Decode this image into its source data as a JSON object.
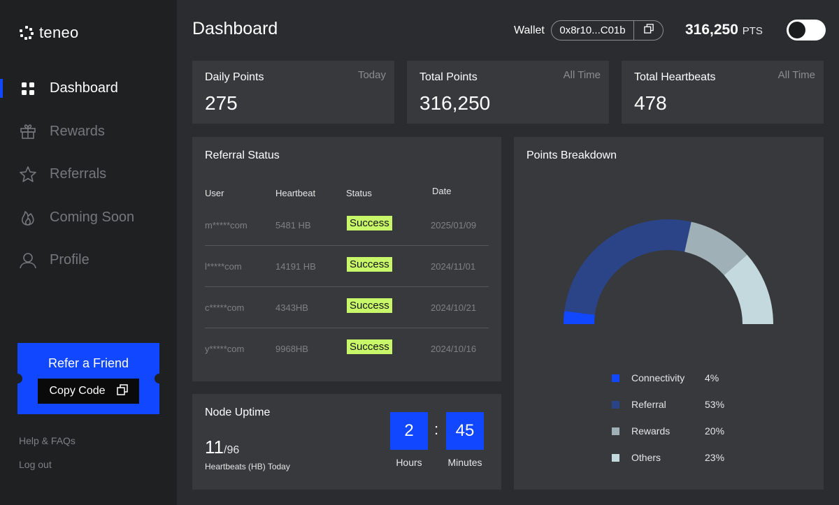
{
  "app": {
    "logo_text": "teneo"
  },
  "nav": {
    "items": [
      {
        "label": "Dashboard",
        "icon": "grid-icon",
        "active": true
      },
      {
        "label": "Rewards",
        "icon": "gift-icon",
        "active": false
      },
      {
        "label": "Referrals",
        "icon": "star-icon",
        "active": false
      },
      {
        "label": "Coming Soon",
        "icon": "flame-icon",
        "active": false
      },
      {
        "label": "Profile",
        "icon": "user-icon",
        "active": false
      }
    ]
  },
  "refer": {
    "title": "Refer a Friend",
    "copy_label": "Copy Code"
  },
  "footer_links": {
    "help": "Help & FAQs",
    "logout": "Log out"
  },
  "header": {
    "title": "Dashboard",
    "wallet_label": "Wallet",
    "wallet_address": "0x8r10...C01b",
    "points_value": "316,250",
    "points_unit": "PTS"
  },
  "stats": [
    {
      "name": "Daily Points",
      "period": "Today",
      "value": "275"
    },
    {
      "name": "Total Points",
      "period": "All Time",
      "value": "316,250"
    },
    {
      "name": "Total Heartbeats",
      "period": "All Time",
      "value": "478"
    }
  ],
  "referral": {
    "title": "Referral Status",
    "columns": [
      "User",
      "Heartbeat",
      "Status",
      "Date"
    ],
    "rows": [
      {
        "user": "m*****com",
        "heartbeat": "5481 HB",
        "status": "Success",
        "date": "2025/01/09"
      },
      {
        "user": "l*****com",
        "heartbeat": "14191 HB",
        "status": "Success",
        "date": "2024/11/01"
      },
      {
        "user": "c*****com",
        "heartbeat": "4343HB",
        "status": "Success",
        "date": "2024/10/21"
      },
      {
        "user": "y*****com",
        "heartbeat": "9968HB",
        "status": "Success",
        "date": "2024/10/16"
      }
    ]
  },
  "uptime": {
    "title": "Node Uptime",
    "count": "11",
    "total": "/96",
    "subtitle": "Heartbeats (HB) Today",
    "hours": "2",
    "minutes": "45",
    "hours_label": "Hours",
    "minutes_label": "Minutes",
    "separator": ":"
  },
  "breakdown": {
    "title": "Points Breakdown",
    "segments": [
      {
        "name": "Connectivity",
        "percent": 4,
        "label": "4%",
        "color": "#1047ff"
      },
      {
        "name": "Referral",
        "percent": 53,
        "label": "53%",
        "color": "#2b4387"
      },
      {
        "name": "Rewards",
        "percent": 20,
        "label": "20%",
        "color": "#9fb1b6"
      },
      {
        "name": "Others",
        "percent": 23,
        "label": "23%",
        "color": "#c3d9dd"
      }
    ]
  }
}
